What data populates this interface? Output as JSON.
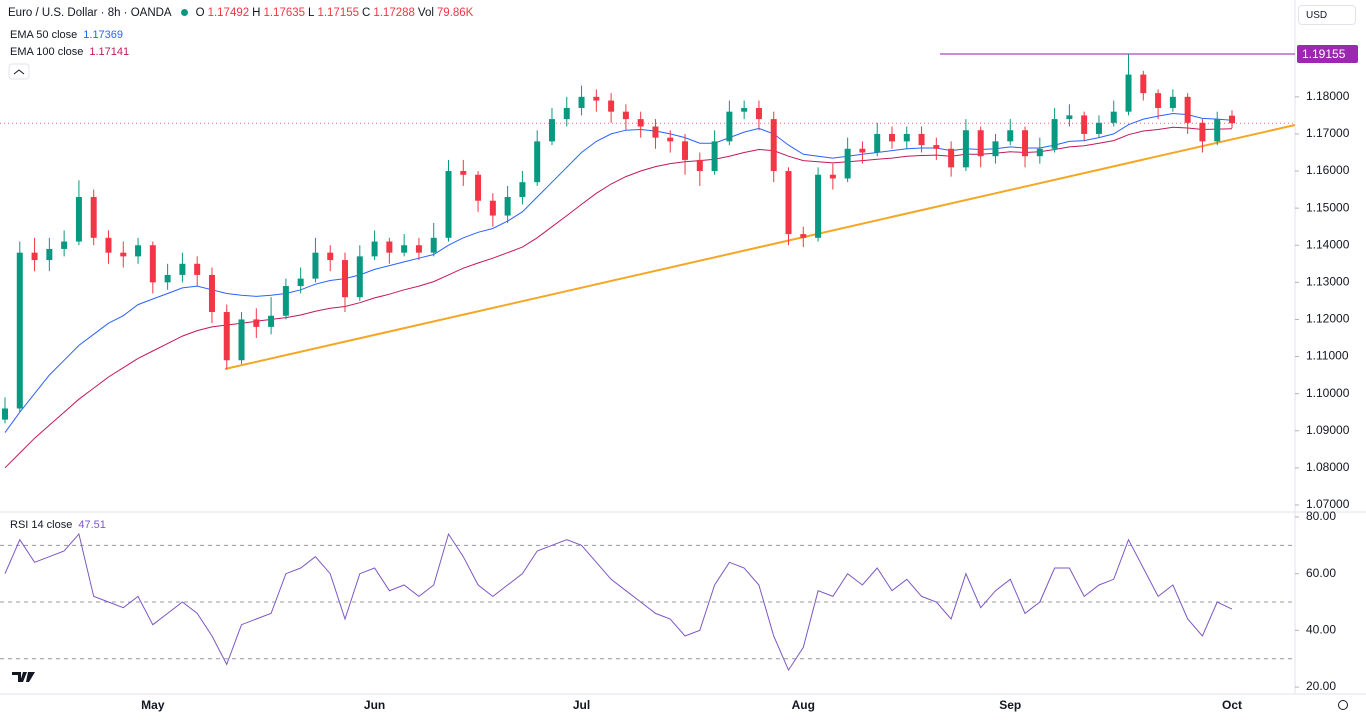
{
  "header": {
    "symbol": "Euro / U.S. Dollar · 8h · OANDA",
    "ohlc_labels": [
      "O",
      "H",
      "L",
      "C"
    ],
    "volume_label": "Vol",
    "volume": "79.86K",
    "currency": "USD"
  },
  "chart_data": {
    "type": "candlestick",
    "categories": [
      null,
      null,
      null,
      null,
      null,
      null,
      null,
      null,
      null,
      null,
      "May",
      null,
      null,
      null,
      null,
      null,
      null,
      null,
      null,
      null,
      null,
      null,
      null,
      null,
      null,
      "Jun",
      null,
      null,
      null,
      null,
      null,
      null,
      null,
      null,
      null,
      null,
      null,
      null,
      null,
      "Jul",
      null,
      null,
      null,
      null,
      null,
      null,
      null,
      null,
      null,
      null,
      null,
      null,
      null,
      null,
      "Aug",
      null,
      null,
      null,
      null,
      null,
      null,
      null,
      null,
      null,
      null,
      null,
      null,
      null,
      "Sep",
      null,
      null,
      null,
      null,
      null,
      null,
      null,
      null,
      null,
      null,
      null,
      null,
      null,
      null,
      "Oct"
    ],
    "open": [
      1.093,
      1.096,
      1.138,
      1.136,
      1.139,
      1.141,
      1.153,
      1.142,
      1.138,
      1.137,
      1.14,
      1.13,
      1.132,
      1.135,
      1.132,
      1.122,
      1.109,
      1.12,
      1.118,
      1.121,
      1.129,
      1.131,
      1.138,
      1.136,
      1.126,
      1.137,
      1.141,
      1.138,
      1.14,
      1.138,
      1.142,
      1.16,
      1.159,
      1.152,
      1.148,
      1.153,
      1.157,
      1.168,
      1.174,
      1.177,
      1.18,
      1.179,
      1.176,
      1.174,
      1.172,
      1.169,
      1.168,
      1.163,
      1.16,
      1.168,
      1.176,
      1.177,
      1.174,
      1.16,
      1.143,
      1.142,
      1.159,
      1.158,
      1.166,
      1.165,
      1.17,
      1.168,
      1.17,
      1.167,
      1.166,
      1.161,
      1.171,
      1.164,
      1.168,
      1.171,
      1.164,
      1.166,
      1.174,
      1.175,
      1.17,
      1.173,
      1.176,
      1.186,
      1.181,
      1.177,
      1.18,
      1.173,
      1.168,
      1.17492
    ],
    "high": [
      1.099,
      1.141,
      1.142,
      1.142,
      1.144,
      1.1575,
      1.155,
      1.144,
      1.141,
      1.142,
      1.141,
      1.135,
      1.138,
      1.137,
      1.134,
      1.124,
      1.122,
      1.123,
      1.126,
      1.131,
      1.134,
      1.142,
      1.14,
      1.138,
      1.14,
      1.144,
      1.142,
      1.143,
      1.142,
      1.146,
      1.163,
      1.163,
      1.16,
      1.154,
      1.156,
      1.16,
      1.171,
      1.177,
      1.18,
      1.183,
      1.182,
      1.181,
      1.178,
      1.176,
      1.174,
      1.171,
      1.17,
      1.165,
      1.171,
      1.179,
      1.179,
      1.179,
      1.176,
      1.161,
      1.145,
      1.161,
      1.162,
      1.169,
      1.168,
      1.173,
      1.172,
      1.172,
      1.172,
      1.169,
      1.168,
      1.174,
      1.172,
      1.17,
      1.174,
      1.172,
      1.169,
      1.177,
      1.178,
      1.176,
      1.175,
      1.179,
      1.19155,
      1.187,
      1.182,
      1.182,
      1.181,
      1.174,
      1.176,
      1.17635
    ],
    "low": [
      1.092,
      1.095,
      1.133,
      1.133,
      1.137,
      1.14,
      1.14,
      1.135,
      1.134,
      1.135,
      1.127,
      1.128,
      1.13,
      1.129,
      1.119,
      1.1065,
      1.108,
      1.115,
      1.116,
      1.12,
      1.127,
      1.13,
      1.133,
      1.122,
      1.125,
      1.136,
      1.135,
      1.137,
      1.136,
      1.137,
      1.141,
      1.156,
      1.149,
      1.145,
      1.146,
      1.151,
      1.156,
      1.167,
      1.172,
      1.175,
      1.176,
      1.173,
      1.171,
      1.169,
      1.166,
      1.165,
      1.159,
      1.156,
      1.159,
      1.167,
      1.174,
      1.171,
      1.157,
      1.14,
      1.1395,
      1.141,
      1.155,
      1.157,
      1.162,
      1.164,
      1.166,
      1.166,
      1.165,
      1.163,
      1.1585,
      1.16,
      1.161,
      1.162,
      1.167,
      1.161,
      1.162,
      1.165,
      1.172,
      1.168,
      1.169,
      1.172,
      1.175,
      1.179,
      1.174,
      1.176,
      1.17,
      1.165,
      1.167,
      1.17155
    ],
    "close": [
      1.096,
      1.138,
      1.136,
      1.139,
      1.141,
      1.153,
      1.142,
      1.138,
      1.137,
      1.14,
      1.13,
      1.132,
      1.135,
      1.132,
      1.122,
      1.109,
      1.12,
      1.118,
      1.121,
      1.129,
      1.131,
      1.138,
      1.136,
      1.126,
      1.137,
      1.141,
      1.138,
      1.14,
      1.138,
      1.142,
      1.16,
      1.159,
      1.152,
      1.148,
      1.153,
      1.157,
      1.168,
      1.174,
      1.177,
      1.18,
      1.179,
      1.176,
      1.174,
      1.172,
      1.169,
      1.168,
      1.163,
      1.16,
      1.168,
      1.176,
      1.177,
      1.174,
      1.16,
      1.143,
      1.142,
      1.159,
      1.158,
      1.166,
      1.165,
      1.17,
      1.168,
      1.17,
      1.167,
      1.166,
      1.161,
      1.171,
      1.164,
      1.168,
      1.171,
      1.164,
      1.166,
      1.174,
      1.175,
      1.17,
      1.173,
      1.176,
      1.186,
      1.181,
      1.177,
      1.18,
      1.173,
      1.168,
      1.174,
      1.17288
    ],
    "up_color": "#089981",
    "down_color": "#f23645",
    "ylim": [
      1.0681,
      1.2061
    ],
    "yticks": [
      {
        "value": 1.07,
        "label": "1.07000"
      },
      {
        "value": 1.08,
        "label": "1.08000"
      },
      {
        "value": 1.09,
        "label": "1.09000"
      },
      {
        "value": 1.1,
        "label": "1.10000"
      },
      {
        "value": 1.11,
        "label": "1.11000"
      },
      {
        "value": 1.12,
        "label": "1.12000"
      },
      {
        "value": 1.13,
        "label": "1.13000"
      },
      {
        "value": 1.14,
        "label": "1.14000"
      },
      {
        "value": 1.15,
        "label": "1.15000"
      },
      {
        "value": 1.16,
        "label": "1.16000"
      },
      {
        "value": 1.17,
        "label": "1.17000"
      },
      {
        "value": 1.18,
        "label": "1.18000"
      }
    ],
    "series": [
      {
        "name": "EMA 50 close",
        "color": "#2962ff",
        "values": [
          1.0895,
          1.095,
          1.1,
          1.105,
          1.109,
          1.113,
          1.116,
          1.119,
          1.121,
          1.124,
          1.1255,
          1.127,
          1.1285,
          1.129,
          1.128,
          1.127,
          1.1265,
          1.1262,
          1.1265,
          1.127,
          1.128,
          1.1295,
          1.1305,
          1.131,
          1.132,
          1.1335,
          1.1345,
          1.1355,
          1.1365,
          1.1375,
          1.14,
          1.142,
          1.1435,
          1.1445,
          1.1465,
          1.149,
          1.153,
          1.157,
          1.161,
          1.165,
          1.168,
          1.17,
          1.171,
          1.1712,
          1.1708,
          1.17,
          1.169,
          1.1675,
          1.1675,
          1.169,
          1.1705,
          1.1715,
          1.17,
          1.167,
          1.1645,
          1.164,
          1.1635,
          1.164,
          1.1645,
          1.165,
          1.1655,
          1.166,
          1.1662,
          1.1662,
          1.1655,
          1.166,
          1.1658,
          1.166,
          1.1665,
          1.1662,
          1.1662,
          1.167,
          1.168,
          1.1682,
          1.169,
          1.17,
          1.1725,
          1.174,
          1.1748,
          1.1755,
          1.1752,
          1.1742,
          1.174,
          1.17369
        ]
      },
      {
        "name": "EMA 100 close",
        "color": "#c2185b",
        "values": [
          1.08,
          1.084,
          1.088,
          1.0915,
          1.095,
          1.0985,
          1.1015,
          1.1045,
          1.107,
          1.1095,
          1.1115,
          1.1135,
          1.1155,
          1.117,
          1.118,
          1.1185,
          1.119,
          1.1195,
          1.12,
          1.1205,
          1.1212,
          1.1222,
          1.123,
          1.1235,
          1.1245,
          1.1258,
          1.1268,
          1.128,
          1.129,
          1.1302,
          1.132,
          1.1338,
          1.1352,
          1.1365,
          1.138,
          1.1395,
          1.142,
          1.145,
          1.148,
          1.151,
          1.154,
          1.1565,
          1.1585,
          1.16,
          1.1612,
          1.162,
          1.1625,
          1.1628,
          1.1632,
          1.164,
          1.165,
          1.1658,
          1.1655,
          1.164,
          1.1628,
          1.1625,
          1.1622,
          1.1625,
          1.1628,
          1.1632,
          1.1635,
          1.164,
          1.1642,
          1.1643,
          1.164,
          1.1645,
          1.1645,
          1.1648,
          1.1652,
          1.165,
          1.1652,
          1.1658,
          1.1665,
          1.1668,
          1.1675,
          1.1682,
          1.1698,
          1.1708,
          1.1712,
          1.1718,
          1.1716,
          1.1712,
          1.1713,
          1.17141
        ]
      }
    ],
    "horizontal_line": {
      "value": 1.19155,
      "color": "#9c27b0"
    },
    "rsi": {
      "name": "RSI 14 close",
      "color": "#7e57c2",
      "values": [
        60,
        72,
        64,
        66,
        68,
        74,
        52,
        50,
        48,
        52,
        42,
        46,
        50,
        46,
        38,
        28,
        42,
        44,
        46,
        60,
        62,
        66,
        60,
        44,
        60,
        62,
        54,
        56,
        52,
        56,
        74,
        66,
        56,
        52,
        56,
        60,
        68,
        70,
        72,
        70,
        64,
        58,
        54,
        50,
        46,
        44,
        38,
        40,
        56,
        64,
        62,
        56,
        38,
        26,
        34,
        54,
        52,
        60,
        56,
        62,
        54,
        58,
        52,
        50,
        44,
        60,
        48,
        54,
        58,
        46,
        50,
        62,
        62,
        52,
        56,
        58,
        72,
        62,
        52,
        56,
        44,
        38,
        50,
        47.51
      ],
      "ylim": [
        16.5,
        81.4
      ],
      "yticks": [
        {
          "value": 20,
          "label": "20.00"
        },
        {
          "value": 40,
          "label": "40.00"
        },
        {
          "value": 60,
          "label": "60.00"
        },
        {
          "value": 80,
          "label": "80.00"
        }
      ],
      "bands": [
        30,
        50,
        70
      ]
    }
  }
}
